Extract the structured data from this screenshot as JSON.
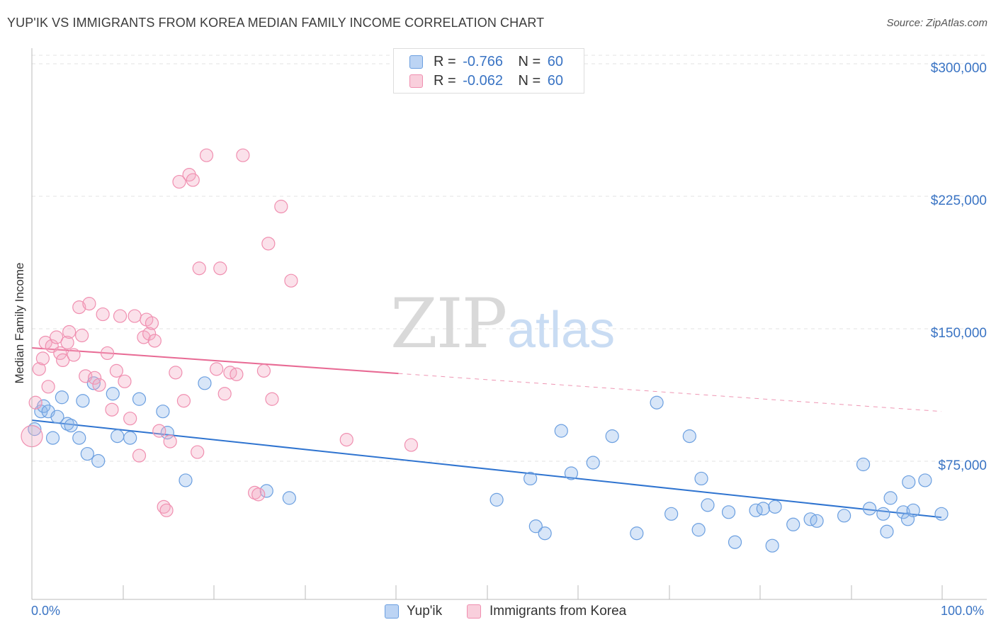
{
  "title": "YUP'IK VS IMMIGRANTS FROM KOREA MEDIAN FAMILY INCOME CORRELATION CHART",
  "source": "Source: ZipAtlas.com",
  "watermark": {
    "zip": "ZIP",
    "atlas": "atlas"
  },
  "colors": {
    "blue": "#6b9fe0",
    "blue_line": "#2f74d0",
    "pink": "#f08fb0",
    "pink_line": "#e86a94",
    "tick_text": "#3a74c4"
  },
  "legend_top": {
    "series": [
      {
        "r_label": "R =",
        "r_value": "-0.766",
        "n_label": "N =",
        "n_value": "60"
      },
      {
        "r_label": "R =",
        "r_value": "-0.062",
        "n_label": "N =",
        "n_value": "60"
      }
    ]
  },
  "legend_bottom": [
    "Yup'ik",
    "Immigrants from Korea"
  ],
  "chart_data": {
    "type": "scatter",
    "title": "YUP'IK VS IMMIGRANTS FROM KOREA MEDIAN FAMILY INCOME CORRELATION CHART",
    "xlabel": "",
    "ylabel": "Median Family Income",
    "xlim": [
      0,
      100
    ],
    "ylim": [
      0,
      310000
    ],
    "x_tick_labels": [
      "0.0%",
      "100.0%"
    ],
    "y_ticks": [
      75000,
      150000,
      225000,
      300000
    ],
    "y_tick_labels": [
      "$75,000",
      "$150,000",
      "$225,000",
      "$300,000"
    ],
    "grid": true,
    "series": [
      {
        "name": "Yup'ik",
        "color": "#6b9fe0",
        "trend": {
          "x": [
            0,
            100
          ],
          "y": [
            101000,
            46000
          ],
          "dashed_from": null
        },
        "points": [
          [
            0.3,
            96000
          ],
          [
            1.0,
            106000
          ],
          [
            1.3,
            109000
          ],
          [
            1.8,
            106000
          ],
          [
            2.3,
            91000
          ],
          [
            2.8,
            103000
          ],
          [
            3.3,
            114000
          ],
          [
            3.9,
            99000
          ],
          [
            4.3,
            98000
          ],
          [
            5.2,
            91000
          ],
          [
            5.6,
            112000
          ],
          [
            6.1,
            82000
          ],
          [
            6.8,
            122000
          ],
          [
            7.3,
            78000
          ],
          [
            8.9,
            116000
          ],
          [
            9.4,
            92000
          ],
          [
            10.8,
            91000
          ],
          [
            11.8,
            113000
          ],
          [
            14.4,
            106000
          ],
          [
            14.9,
            94000
          ],
          [
            16.9,
            67000
          ],
          [
            19.0,
            122000
          ],
          [
            25.8,
            61000
          ],
          [
            28.3,
            57000
          ],
          [
            51.1,
            56000
          ],
          [
            54.8,
            68000
          ],
          [
            55.4,
            41000
          ],
          [
            56.4,
            37000
          ],
          [
            58.2,
            95000
          ],
          [
            59.3,
            71000
          ],
          [
            61.7,
            77000
          ],
          [
            63.8,
            92000
          ],
          [
            66.5,
            37000
          ],
          [
            68.7,
            111000
          ],
          [
            70.3,
            48000
          ],
          [
            72.3,
            92000
          ],
          [
            73.3,
            39000
          ],
          [
            73.6,
            68000
          ],
          [
            74.3,
            53000
          ],
          [
            76.6,
            49000
          ],
          [
            77.3,
            32000
          ],
          [
            79.6,
            50000
          ],
          [
            80.4,
            51000
          ],
          [
            81.4,
            30000
          ],
          [
            81.7,
            52000
          ],
          [
            83.7,
            42000
          ],
          [
            85.6,
            45000
          ],
          [
            86.3,
            44000
          ],
          [
            89.3,
            47000
          ],
          [
            91.4,
            76000
          ],
          [
            92.1,
            51000
          ],
          [
            93.6,
            48000
          ],
          [
            94.0,
            38000
          ],
          [
            94.4,
            57000
          ],
          [
            95.8,
            49000
          ],
          [
            96.3,
            45000
          ],
          [
            96.4,
            66000
          ],
          [
            96.9,
            50000
          ],
          [
            98.2,
            67000
          ],
          [
            100.0,
            48000
          ]
        ]
      },
      {
        "name": "Immigrants from Korea",
        "color": "#f08fb0",
        "trend": {
          "x": [
            0,
            100
          ],
          "y": [
            142000,
            106000
          ],
          "dashed_from": 40.3
        },
        "points": [
          [
            0.0,
            92000
          ],
          [
            0.4,
            111000
          ],
          [
            0.8,
            130000
          ],
          [
            1.2,
            136000
          ],
          [
            1.5,
            145000
          ],
          [
            1.8,
            120000
          ],
          [
            2.2,
            143000
          ],
          [
            2.7,
            148000
          ],
          [
            3.1,
            139000
          ],
          [
            3.4,
            135000
          ],
          [
            3.9,
            145000
          ],
          [
            4.1,
            151000
          ],
          [
            4.6,
            138000
          ],
          [
            5.2,
            165000
          ],
          [
            5.5,
            149000
          ],
          [
            5.9,
            126000
          ],
          [
            6.3,
            167000
          ],
          [
            6.9,
            125000
          ],
          [
            7.4,
            121000
          ],
          [
            7.8,
            161000
          ],
          [
            8.3,
            139000
          ],
          [
            8.8,
            107000
          ],
          [
            9.3,
            129000
          ],
          [
            9.7,
            160000
          ],
          [
            10.2,
            123000
          ],
          [
            10.8,
            102000
          ],
          [
            11.3,
            160000
          ],
          [
            11.8,
            81000
          ],
          [
            12.3,
            148000
          ],
          [
            12.6,
            158000
          ],
          [
            12.9,
            150000
          ],
          [
            13.2,
            156000
          ],
          [
            13.5,
            146000
          ],
          [
            14.0,
            95000
          ],
          [
            14.5,
            52000
          ],
          [
            14.8,
            50000
          ],
          [
            15.2,
            89000
          ],
          [
            15.8,
            128000
          ],
          [
            16.2,
            236000
          ],
          [
            16.7,
            112000
          ],
          [
            17.3,
            240000
          ],
          [
            17.7,
            237000
          ],
          [
            18.2,
            83000
          ],
          [
            18.4,
            187000
          ],
          [
            19.2,
            251000
          ],
          [
            20.3,
            130000
          ],
          [
            20.7,
            187000
          ],
          [
            21.2,
            116000
          ],
          [
            21.8,
            128000
          ],
          [
            22.5,
            127000
          ],
          [
            23.2,
            251000
          ],
          [
            24.5,
            60000
          ],
          [
            24.9,
            59000
          ],
          [
            25.5,
            129000
          ],
          [
            26.0,
            201000
          ],
          [
            26.4,
            113000
          ],
          [
            27.4,
            222000
          ],
          [
            28.5,
            180000
          ],
          [
            34.6,
            90000
          ],
          [
            41.7,
            87000
          ]
        ]
      }
    ]
  }
}
